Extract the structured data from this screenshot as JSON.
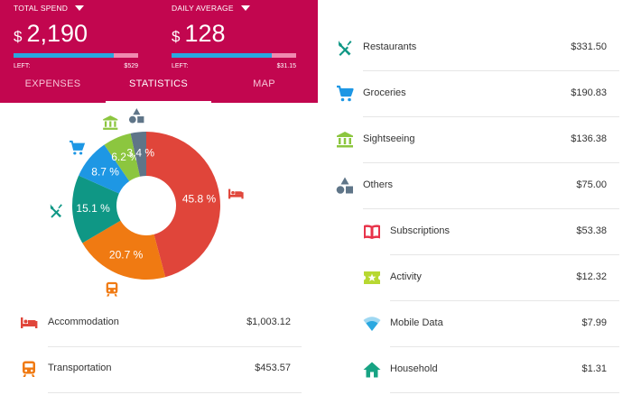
{
  "header": {
    "total": {
      "label": "TOTAL SPEND",
      "currency": "$",
      "amount": "2,190",
      "left_label": "LEFT:",
      "left_value": "$529",
      "progress": 0.806
    },
    "daily": {
      "label": "DAILY AVERAGE",
      "currency": "$",
      "amount": "128",
      "left_label": "LEFT:",
      "left_value": "$31.15",
      "progress": 0.804
    },
    "tabs": [
      {
        "label": "EXPENSES",
        "active": false
      },
      {
        "label": "STATISTICS",
        "active": true
      },
      {
        "label": "MAP",
        "active": false
      }
    ]
  },
  "chart_data": {
    "type": "pie",
    "categories": [
      "Accommodation",
      "Transportation",
      "Restaurants",
      "Groceries",
      "Sightseeing",
      "Others"
    ],
    "values": [
      45.8,
      20.7,
      15.1,
      8.7,
      6.2,
      3.4
    ],
    "labels": [
      "45.8 %",
      "20.7 %",
      "15.1 %",
      "8.7 %",
      "6.2 %",
      "3.4 %"
    ],
    "colors": [
      "#e0453a",
      "#f07a12",
      "#0f9785",
      "#1e97e4",
      "#8cc63f",
      "#5f7588"
    ],
    "icons": [
      "bed-icon",
      "train-icon",
      "fork-knife-icon",
      "cart-icon",
      "bank-icon",
      "shapes-icon"
    ]
  },
  "left_list": [
    {
      "name": "Accommodation",
      "value": "$1,003.12",
      "icon": "bed-icon",
      "color": "#e0453a"
    },
    {
      "name": "Transportation",
      "value": "$453.57",
      "icon": "train-icon",
      "color": "#f07a12"
    }
  ],
  "right_list": [
    {
      "name": "Restaurants",
      "value": "$331.50",
      "icon": "fork-knife-icon",
      "color": "#0f9785",
      "indent": false
    },
    {
      "name": "Groceries",
      "value": "$190.83",
      "icon": "cart-icon",
      "color": "#1e97e4",
      "indent": false
    },
    {
      "name": "Sightseeing",
      "value": "$136.38",
      "icon": "bank-icon",
      "color": "#8cc63f",
      "indent": false
    },
    {
      "name": "Others",
      "value": "$75.00",
      "icon": "shapes-icon",
      "color": "#5f7588",
      "indent": false
    },
    {
      "name": "Subscriptions",
      "value": "$53.38",
      "icon": "book-icon",
      "color": "#e8334a",
      "indent": true
    },
    {
      "name": "Activity",
      "value": "$12.32",
      "icon": "ticket-icon",
      "color": "#b7d832",
      "indent": true
    },
    {
      "name": "Mobile Data",
      "value": "$7.99",
      "icon": "wifi-icon",
      "color": "#2aa8e0",
      "indent": true
    },
    {
      "name": "Household",
      "value": "$1.31",
      "icon": "house-icon",
      "color": "#17a383",
      "indent": true
    }
  ]
}
